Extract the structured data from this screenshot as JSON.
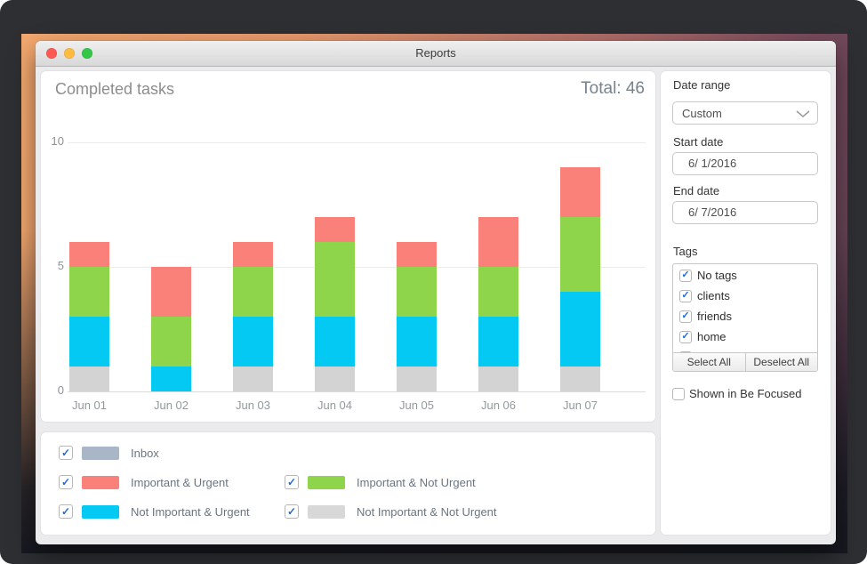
{
  "window": {
    "title": "Reports"
  },
  "chart_data": {
    "type": "stacked_bar",
    "title": "Completed tasks",
    "total_text": "Total: 46",
    "total_value": 46,
    "categories": [
      "Jun 01",
      "Jun 02",
      "Jun 03",
      "Jun 04",
      "Jun 05",
      "Jun 06",
      "Jun 07"
    ],
    "series": [
      {
        "name": "Not Important & Not Urgent",
        "color": "#d3d3d3",
        "values": [
          1,
          0,
          1,
          1,
          1,
          1,
          1
        ]
      },
      {
        "name": "Not Important & Urgent",
        "color": "#04c9f2",
        "values": [
          2,
          1,
          2,
          2,
          2,
          2,
          3
        ]
      },
      {
        "name": "Important & Not Urgent",
        "color": "#8ed54b",
        "values": [
          2,
          2,
          2,
          3,
          2,
          2,
          3
        ]
      },
      {
        "name": "Important & Urgent",
        "color": "#f9817a",
        "values": [
          1,
          2,
          1,
          1,
          1,
          2,
          2
        ]
      }
    ],
    "category_totals": [
      6,
      5,
      6,
      7,
      6,
      7,
      9
    ],
    "y_ticks": [
      0,
      5,
      10
    ],
    "ylim": [
      0,
      10
    ],
    "grid": true,
    "legend_position": "bottom-panel"
  },
  "legend": {
    "items": [
      {
        "label": "Inbox",
        "color": "#a9b6c8",
        "checked": true
      },
      {
        "label": "Important & Urgent",
        "color": "#f9817a",
        "checked": true
      },
      {
        "label": "Important & Not Urgent",
        "color": "#8ed54b",
        "checked": true
      },
      {
        "label": "Not Important & Urgent",
        "color": "#04c9f2",
        "checked": true
      },
      {
        "label": "Not Important & Not Urgent",
        "color": "#d8d8d8",
        "checked": true
      }
    ]
  },
  "sidebar": {
    "date_range_label": "Date range",
    "date_range_value": "Custom",
    "start_date_label": "Start date",
    "start_date_value": "6/ 1/2016",
    "end_date_label": "End date",
    "end_date_value": "6/ 7/2016",
    "tags_label": "Tags",
    "tags": [
      {
        "label": "No tags",
        "checked": true
      },
      {
        "label": "clients",
        "checked": true
      },
      {
        "label": "friends",
        "checked": true
      },
      {
        "label": "home",
        "checked": true
      }
    ],
    "select_all_label": "Select All",
    "deselect_all_label": "Deselect All",
    "shown_in_label": "Shown in Be Focused",
    "shown_in_checked": false
  },
  "colors": {
    "check_blue": "#1e6be0",
    "accent_salmon": "#f9817a",
    "accent_green": "#8ed54b",
    "accent_cyan": "#04c9f2"
  }
}
